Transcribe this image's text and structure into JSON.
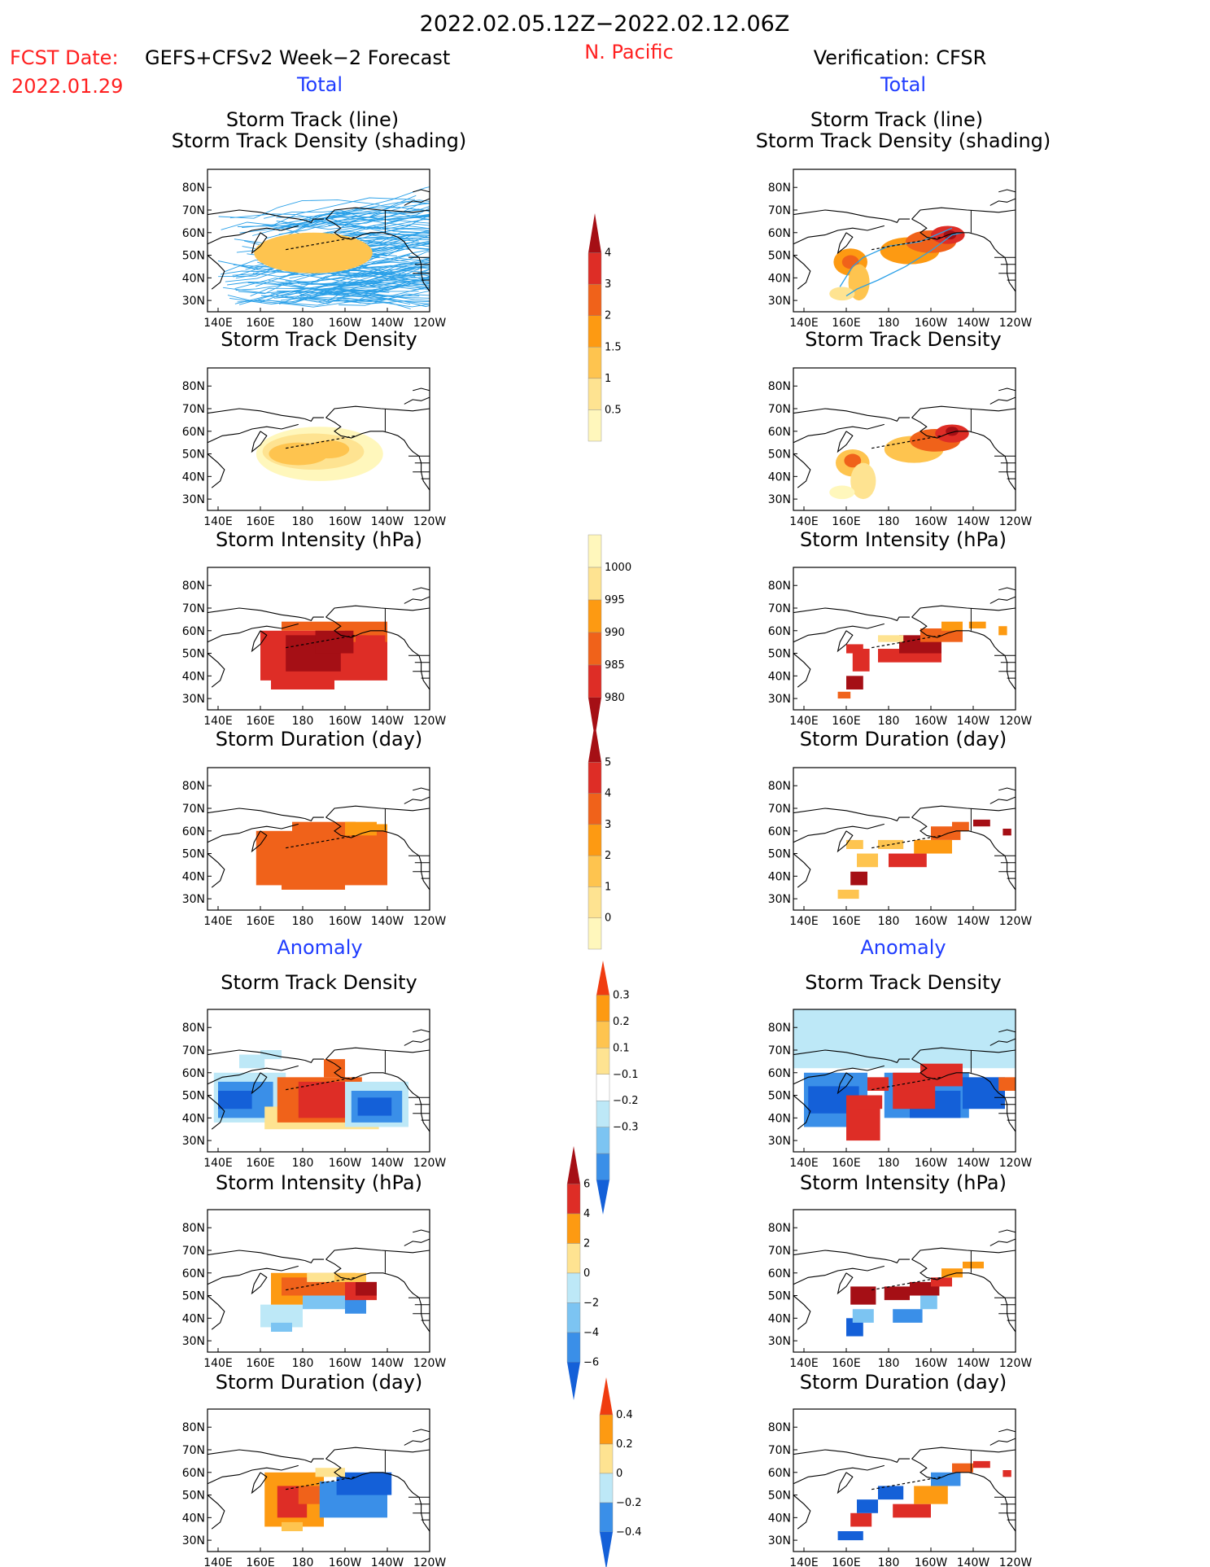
{
  "header": {
    "date_range": "2022.02.05.12Z−2022.02.12.06Z",
    "fcst_label": "FCST Date:",
    "fcst_date": "2022.01.29",
    "forecast_name": "GEFS+CFSv2 Week−2 Forecast",
    "region": "N. Pacific",
    "verification": "Verification: CFSR",
    "total_left": "Total",
    "total_right": "Total",
    "anomaly_left": "Anomaly",
    "anomaly_right": "Anomaly"
  },
  "colors": {
    "title_red": "#ff2020",
    "title_blue": "#1f3cff",
    "track_line": "#2aa0e8"
  },
  "panel_titles": {
    "track_line": "Storm Track (line)",
    "track_shading": "Storm Track Density (shading)",
    "density": "Storm Track Density",
    "intensity": "Storm Intensity (hPa)",
    "duration": "Storm Duration (day)"
  },
  "map_axes": {
    "lon_ticks": [
      "140E",
      "160E",
      "180",
      "160W",
      "140W",
      "120W"
    ],
    "lat_ticks": [
      "80N",
      "70N",
      "60N",
      "50N",
      "40N",
      "30N"
    ]
  },
  "colorbars": {
    "density_total": {
      "ticks": [
        "4",
        "3",
        "2",
        "1.5",
        "1",
        "0.5"
      ],
      "colors": [
        "#a50f15",
        "#de2d26",
        "#f0621a",
        "#fd9a12",
        "#fec44f",
        "#fee391",
        "#fff7bc"
      ]
    },
    "intensity_total": {
      "ticks": [
        "1000",
        "995",
        "990",
        "985",
        "980"
      ],
      "colors": [
        "#fff7bc",
        "#fee391",
        "#fd9a12",
        "#f0621a",
        "#de2d26",
        "#a50f15"
      ]
    },
    "duration_total": {
      "ticks": [
        "5",
        "4",
        "3",
        "2",
        "1",
        "0"
      ],
      "colors": [
        "#a50f15",
        "#de2d26",
        "#f0621a",
        "#fd9a12",
        "#fec44f",
        "#fee391",
        "#fff7bc"
      ]
    },
    "density_anom": {
      "ticks": [
        "0.3",
        "0.2",
        "0.1",
        "−0.1",
        "−0.2",
        "−0.3"
      ],
      "colors": [
        "#f03c10",
        "#fd9a12",
        "#fec44f",
        "#fee391",
        "#ffffff",
        "#bde8f7",
        "#7cc4f2",
        "#3a8fe8",
        "#1460d8"
      ]
    },
    "intensity_anom": {
      "ticks": [
        "6",
        "4",
        "2",
        "0",
        "−2",
        "−4",
        "−6"
      ],
      "colors": [
        "#a50f15",
        "#de2d26",
        "#fd9a12",
        "#fee391",
        "#bde8f7",
        "#7cc4f2",
        "#3a8fe8",
        "#1460d8"
      ]
    },
    "duration_anom": {
      "ticks": [
        "0.4",
        "0.2",
        "0",
        "−0.2",
        "−0.4"
      ],
      "colors": [
        "#f03c10",
        "#fd9a12",
        "#fee391",
        "#bde8f7",
        "#3a8fe8",
        "#1460d8"
      ]
    }
  },
  "chart_data": [
    {
      "type": "heatmap",
      "title": "Storm Track (line) Storm Track Density (shading)",
      "column": "Forecast",
      "section": "Total"
    },
    {
      "type": "heatmap",
      "title": "Storm Track Density",
      "column": "Forecast",
      "section": "Total"
    },
    {
      "type": "heatmap",
      "title": "Storm Intensity (hPa)",
      "column": "Forecast",
      "section": "Total"
    },
    {
      "type": "heatmap",
      "title": "Storm Duration (day)",
      "column": "Forecast",
      "section": "Total"
    },
    {
      "type": "heatmap",
      "title": "Storm Track Density",
      "column": "Forecast",
      "section": "Anomaly"
    },
    {
      "type": "heatmap",
      "title": "Storm Intensity (hPa)",
      "column": "Forecast",
      "section": "Anomaly"
    },
    {
      "type": "heatmap",
      "title": "Storm Duration (day)",
      "column": "Forecast",
      "section": "Anomaly"
    },
    {
      "type": "heatmap",
      "title": "Storm Track (line) Storm Track Density (shading)",
      "column": "Verification",
      "section": "Total"
    },
    {
      "type": "heatmap",
      "title": "Storm Track Density",
      "column": "Verification",
      "section": "Total"
    },
    {
      "type": "heatmap",
      "title": "Storm Intensity (hPa)",
      "column": "Verification",
      "section": "Total"
    },
    {
      "type": "heatmap",
      "title": "Storm Duration (day)",
      "column": "Verification",
      "section": "Total"
    },
    {
      "type": "heatmap",
      "title": "Storm Track Density",
      "column": "Verification",
      "section": "Anomaly"
    },
    {
      "type": "heatmap",
      "title": "Storm Intensity (hPa)",
      "column": "Verification",
      "section": "Anomaly"
    },
    {
      "type": "heatmap",
      "title": "Storm Duration (day)",
      "column": "Verification",
      "section": "Anomaly"
    }
  ]
}
